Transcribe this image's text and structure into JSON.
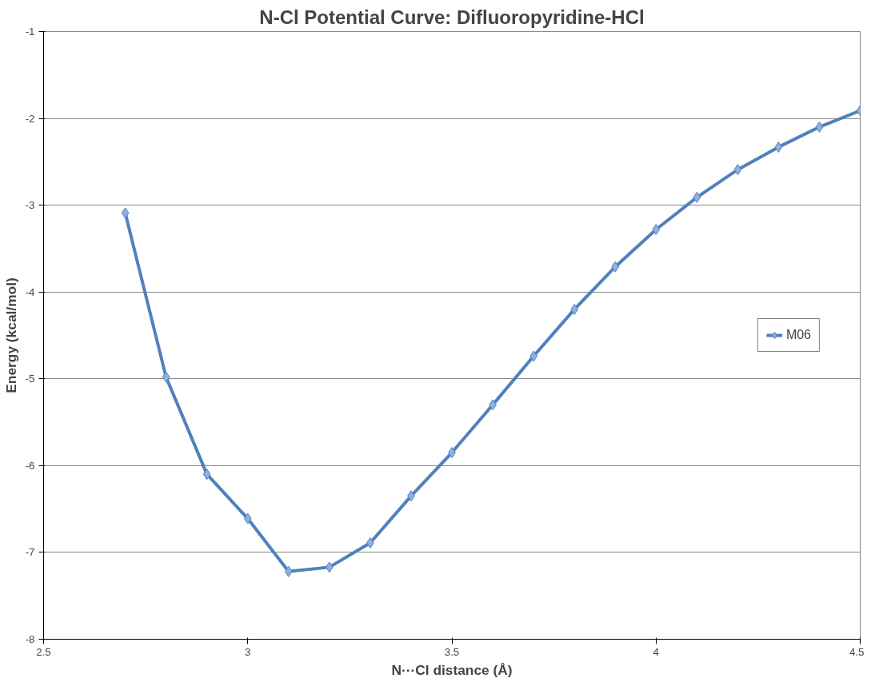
{
  "chart_data": {
    "type": "line",
    "title": "N-Cl Potential Curve: Difluoropyridine-HCl",
    "xlabel": "N···Cl distance (Å)",
    "ylabel": "Energy (kcal/mol)",
    "x": [
      2.7,
      2.8,
      2.9,
      3.0,
      3.1,
      3.2,
      3.3,
      3.4,
      3.5,
      3.6,
      3.7,
      3.8,
      3.9,
      4.0,
      4.1,
      4.2,
      4.3,
      4.4,
      4.5
    ],
    "series": [
      {
        "name": "M06",
        "color": "#4f81bd",
        "values": [
          -3.09,
          -4.98,
          -6.1,
          -6.61,
          -7.22,
          -7.17,
          -6.89,
          -6.35,
          -5.85,
          -5.3,
          -4.74,
          -4.2,
          -3.71,
          -3.28,
          -2.91,
          -2.59,
          -2.33,
          -2.1,
          -1.91
        ]
      }
    ],
    "xlim": [
      2.5,
      4.5
    ],
    "xticks": [
      2.5,
      3,
      3.5,
      4,
      4.5
    ],
    "ylim": [
      -8,
      -1
    ],
    "yticks": [
      -8,
      -7,
      -6,
      -5,
      -4,
      -3,
      -2,
      -1
    ],
    "grid": "y",
    "legend": "right",
    "marker": "diamond",
    "line_style": "solid"
  }
}
